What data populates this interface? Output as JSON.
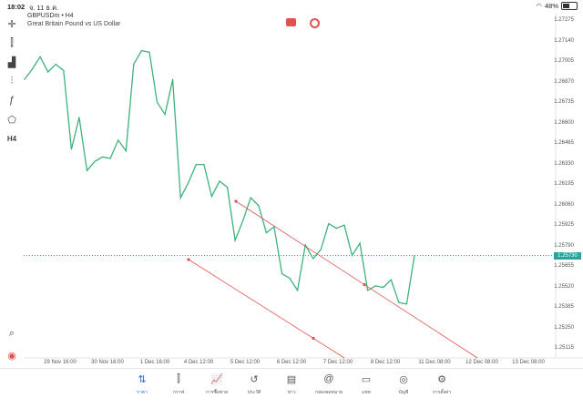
{
  "status": {
    "time": "18:02",
    "date": "จ. 11 ธ.ค.",
    "battery": "48%",
    "battery_level": 0.48
  },
  "symbol": {
    "ticker": "GBPUSDm • H4",
    "description": "Great Britain Pound vs US Dollar"
  },
  "tools": [
    {
      "icon": "crosshair-icon",
      "glyph": "✛"
    },
    {
      "icon": "candlestick-icon",
      "glyph": "⫿"
    },
    {
      "icon": "bar-chart-icon",
      "glyph": "▟"
    },
    {
      "icon": "indicators-icon",
      "glyph": "⫶"
    },
    {
      "icon": "function-icon",
      "glyph": "ƒ"
    },
    {
      "icon": "shapes-icon",
      "glyph": "⬠"
    },
    {
      "icon": "timeframe-icon",
      "glyph": "H4"
    }
  ],
  "tools_bottom": [
    {
      "icon": "zoom-icon",
      "glyph": "⌕"
    },
    {
      "icon": "app-logo-icon",
      "glyph": "◉"
    }
  ],
  "y_axis": [
    "1.27275",
    "1.27140",
    "1.27005",
    "1.26870",
    "1.26735",
    "1.26600",
    "1.26465",
    "1.26330",
    "1.26195",
    "1.26060",
    "1.25925",
    "1.25790",
    "1.25655",
    "1.25520",
    "1.25385",
    "1.25250",
    "1.25115"
  ],
  "current_price": "1.25730",
  "x_axis": [
    "29 Nov 16:00",
    "30 Nov 16:00",
    "1 Dec 16:00",
    "4 Dec 12:00",
    "5 Dec 12:00",
    "6 Dec 12:00",
    "7 Dec 12:00",
    "8 Dec 12:00",
    "11 Dec 08:00",
    "12 Dec 08:00",
    "13 Dec 08:00"
  ],
  "nav": [
    {
      "icon": "quotes-icon",
      "label": "ราคา",
      "glyph": "⇅",
      "active": true
    },
    {
      "icon": "chart-icon",
      "label": "กราฟ",
      "glyph": "⫿",
      "active": false
    },
    {
      "icon": "trade-icon",
      "label": "การซื้อขาย",
      "glyph": "📈",
      "active": false
    },
    {
      "icon": "history-icon",
      "label": "ประวัติ",
      "glyph": "↺",
      "active": false
    },
    {
      "icon": "news-icon",
      "label": "ข่าว",
      "glyph": "▤",
      "active": false
    },
    {
      "icon": "mailbox-icon",
      "label": "กล่องจดหมาย",
      "glyph": "@",
      "active": false
    },
    {
      "icon": "chat-icon",
      "label": "แชท",
      "glyph": "▭",
      "active": false
    },
    {
      "icon": "account-icon",
      "label": "บัญชี",
      "glyph": "◎",
      "active": false
    },
    {
      "icon": "settings-icon",
      "label": "การตั้งค่า",
      "glyph": "⚙",
      "active": false
    }
  ],
  "colors": {
    "line": "#3cb37a",
    "trend": "#e05252",
    "price_tag": "#26a69a",
    "active": "#1e6bd6"
  },
  "chart_data": {
    "type": "line",
    "title": "",
    "series": [
      {
        "values": [
          1.2689,
          1.2696,
          1.2704,
          1.2694,
          1.2699,
          1.2695,
          1.2643,
          1.2664,
          1.2629,
          1.2635,
          1.2638,
          1.2637,
          1.2649,
          1.2642,
          1.2699,
          1.2708,
          1.2707,
          1.2674,
          1.2666,
          1.2689,
          1.2611,
          1.2621,
          1.2633,
          1.2633,
          1.2612,
          1.2622,
          1.2618,
          1.2583,
          1.2596,
          1.2611,
          1.2606,
          1.2588,
          1.2592,
          1.2561,
          1.2558,
          1.255,
          1.258,
          1.2571,
          1.2577,
          1.2594,
          1.2591,
          1.2593,
          1.2573,
          1.2581,
          1.255,
          1.2553,
          1.2552,
          1.2557,
          1.2542,
          1.2541,
          1.2573
        ]
      }
    ],
    "ylim": [
      1.25055,
      1.2733
    ]
  }
}
